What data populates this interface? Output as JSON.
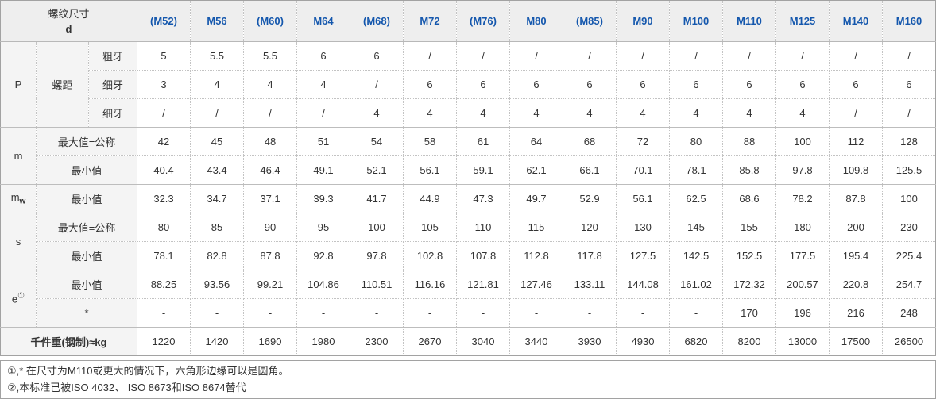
{
  "colors": {
    "header_text": "#1457ad",
    "header_bg": "#eeeeee",
    "label_bg": "#f4f4f4",
    "border_outer": "#a2a2a2",
    "border_inner": "#c3c3c3"
  },
  "header": {
    "corner_title": "螺纹尺寸",
    "corner_subtitle": "d",
    "columns": [
      "(M52)",
      "M56",
      "(M60)",
      "M64",
      "(M68)",
      "M72",
      "(M76)",
      "M80",
      "(M85)",
      "M90",
      "M100",
      "M110",
      "M125",
      "M140",
      "M160"
    ]
  },
  "sections": [
    {
      "symbol": "P",
      "group_label": "螺距",
      "rows": [
        {
          "label": "粗牙",
          "values": [
            "5",
            "5.5",
            "5.5",
            "6",
            "6",
            "/",
            "/",
            "/",
            "/",
            "/",
            "/",
            "/",
            "/",
            "/",
            "/"
          ]
        },
        {
          "label": "细牙",
          "values": [
            "3",
            "4",
            "4",
            "4",
            "/",
            "6",
            "6",
            "6",
            "6",
            "6",
            "6",
            "6",
            "6",
            "6",
            "6"
          ]
        },
        {
          "label": "细牙",
          "values": [
            "/",
            "/",
            "/",
            "/",
            "4",
            "4",
            "4",
            "4",
            "4",
            "4",
            "4",
            "4",
            "4",
            "/",
            "/"
          ]
        }
      ]
    },
    {
      "symbol": "m",
      "rows": [
        {
          "label": "最大值=公称",
          "values": [
            "42",
            "45",
            "48",
            "51",
            "54",
            "58",
            "61",
            "64",
            "68",
            "72",
            "80",
            "88",
            "100",
            "112",
            "128"
          ]
        },
        {
          "label": "最小值",
          "values": [
            "40.4",
            "43.4",
            "46.4",
            "49.1",
            "52.1",
            "56.1",
            "59.1",
            "62.1",
            "66.1",
            "70.1",
            "78.1",
            "85.8",
            "97.8",
            "109.8",
            "125.5"
          ]
        }
      ]
    },
    {
      "symbol": "m",
      "symbol_sub": "w",
      "rows": [
        {
          "label": "最小值",
          "values": [
            "32.3",
            "34.7",
            "37.1",
            "39.3",
            "41.7",
            "44.9",
            "47.3",
            "49.7",
            "52.9",
            "56.1",
            "62.5",
            "68.6",
            "78.2",
            "87.8",
            "100"
          ]
        }
      ]
    },
    {
      "symbol": "s",
      "rows": [
        {
          "label": "最大值=公称",
          "values": [
            "80",
            "85",
            "90",
            "95",
            "100",
            "105",
            "110",
            "115",
            "120",
            "130",
            "145",
            "155",
            "180",
            "200",
            "230"
          ]
        },
        {
          "label": "最小值",
          "values": [
            "78.1",
            "82.8",
            "87.8",
            "92.8",
            "97.8",
            "102.8",
            "107.8",
            "112.8",
            "117.8",
            "127.5",
            "142.5",
            "152.5",
            "177.5",
            "195.4",
            "225.4"
          ]
        }
      ]
    },
    {
      "symbol": "e",
      "symbol_sup": "①",
      "rows": [
        {
          "label": "最小值",
          "values": [
            "88.25",
            "93.56",
            "99.21",
            "104.86",
            "110.51",
            "116.16",
            "121.81",
            "127.46",
            "133.11",
            "144.08",
            "161.02",
            "172.32",
            "200.57",
            "220.8",
            "254.7"
          ]
        },
        {
          "label": "*",
          "values": [
            "-",
            "-",
            "-",
            "-",
            "-",
            "-",
            "-",
            "-",
            "-",
            "-",
            "-",
            "170",
            "196",
            "216",
            "248"
          ]
        }
      ]
    }
  ],
  "footer_row": {
    "label": "千件重(钢制)≈kg",
    "values": [
      "1220",
      "1420",
      "1690",
      "1980",
      "2300",
      "2670",
      "3040",
      "3440",
      "3930",
      "4930",
      "6820",
      "8200",
      "13000",
      "17500",
      "26500"
    ]
  },
  "notes": [
    "①,* 在尺寸为M110或更大的情况下，六角形边缘可以是圆角。",
    "②,本标准已被ISO 4032、 ISO 8673和ISO 8674替代"
  ]
}
